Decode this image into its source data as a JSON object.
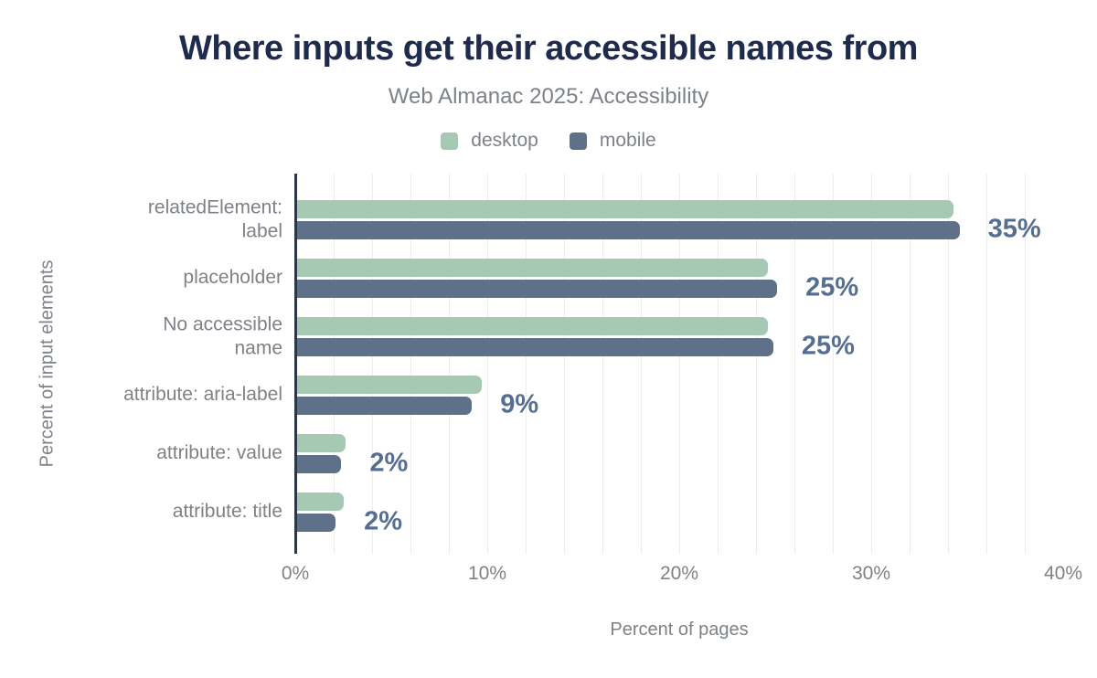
{
  "header": {
    "title": "Where inputs get their accessible names from",
    "subtitle": "Web Almanac 2025: Accessibility"
  },
  "colors": {
    "title": "#1e2b4d",
    "muted_text": "#7d8288",
    "desktop": "#a5c9b3",
    "mobile": "#5f7089",
    "value_label": "#566e92",
    "axis_line": "#2b3748",
    "gridline": "#ededed"
  },
  "legend": {
    "items": [
      {
        "label": "desktop",
        "color": "#a5c9b3"
      },
      {
        "label": "mobile",
        "color": "#5f7089"
      }
    ]
  },
  "chart_data": {
    "type": "bar",
    "orientation": "horizontal",
    "title": "Where inputs get their accessible names from",
    "subtitle": "Web Almanac 2025: Accessibility",
    "xlabel": "Percent of pages",
    "ylabel": "Percent of input elements",
    "xlim": [
      0,
      40
    ],
    "grid": true,
    "grid_step": 2,
    "legend_position": "top",
    "categories": [
      "relatedElement:\nlabel",
      "placeholder",
      "No accessible\nname",
      "attribute: aria-label",
      "attribute: value",
      "attribute: title"
    ],
    "series": [
      {
        "name": "desktop",
        "color": "#a5c9b3",
        "values": [
          34.3,
          24.6,
          24.6,
          9.7,
          2.6,
          2.5
        ]
      },
      {
        "name": "mobile",
        "color": "#5f7089",
        "values": [
          34.6,
          25.1,
          24.9,
          9.2,
          2.4,
          2.1
        ]
      }
    ],
    "value_labels": [
      "35%",
      "25%",
      "25%",
      "9%",
      "2%",
      "2%"
    ],
    "value_label_series": "mobile",
    "xticks": [
      {
        "value": 0,
        "label": "0%"
      },
      {
        "value": 10,
        "label": "10%"
      },
      {
        "value": 20,
        "label": "20%"
      },
      {
        "value": 30,
        "label": "30%"
      },
      {
        "value": 40,
        "label": "40%"
      }
    ]
  }
}
